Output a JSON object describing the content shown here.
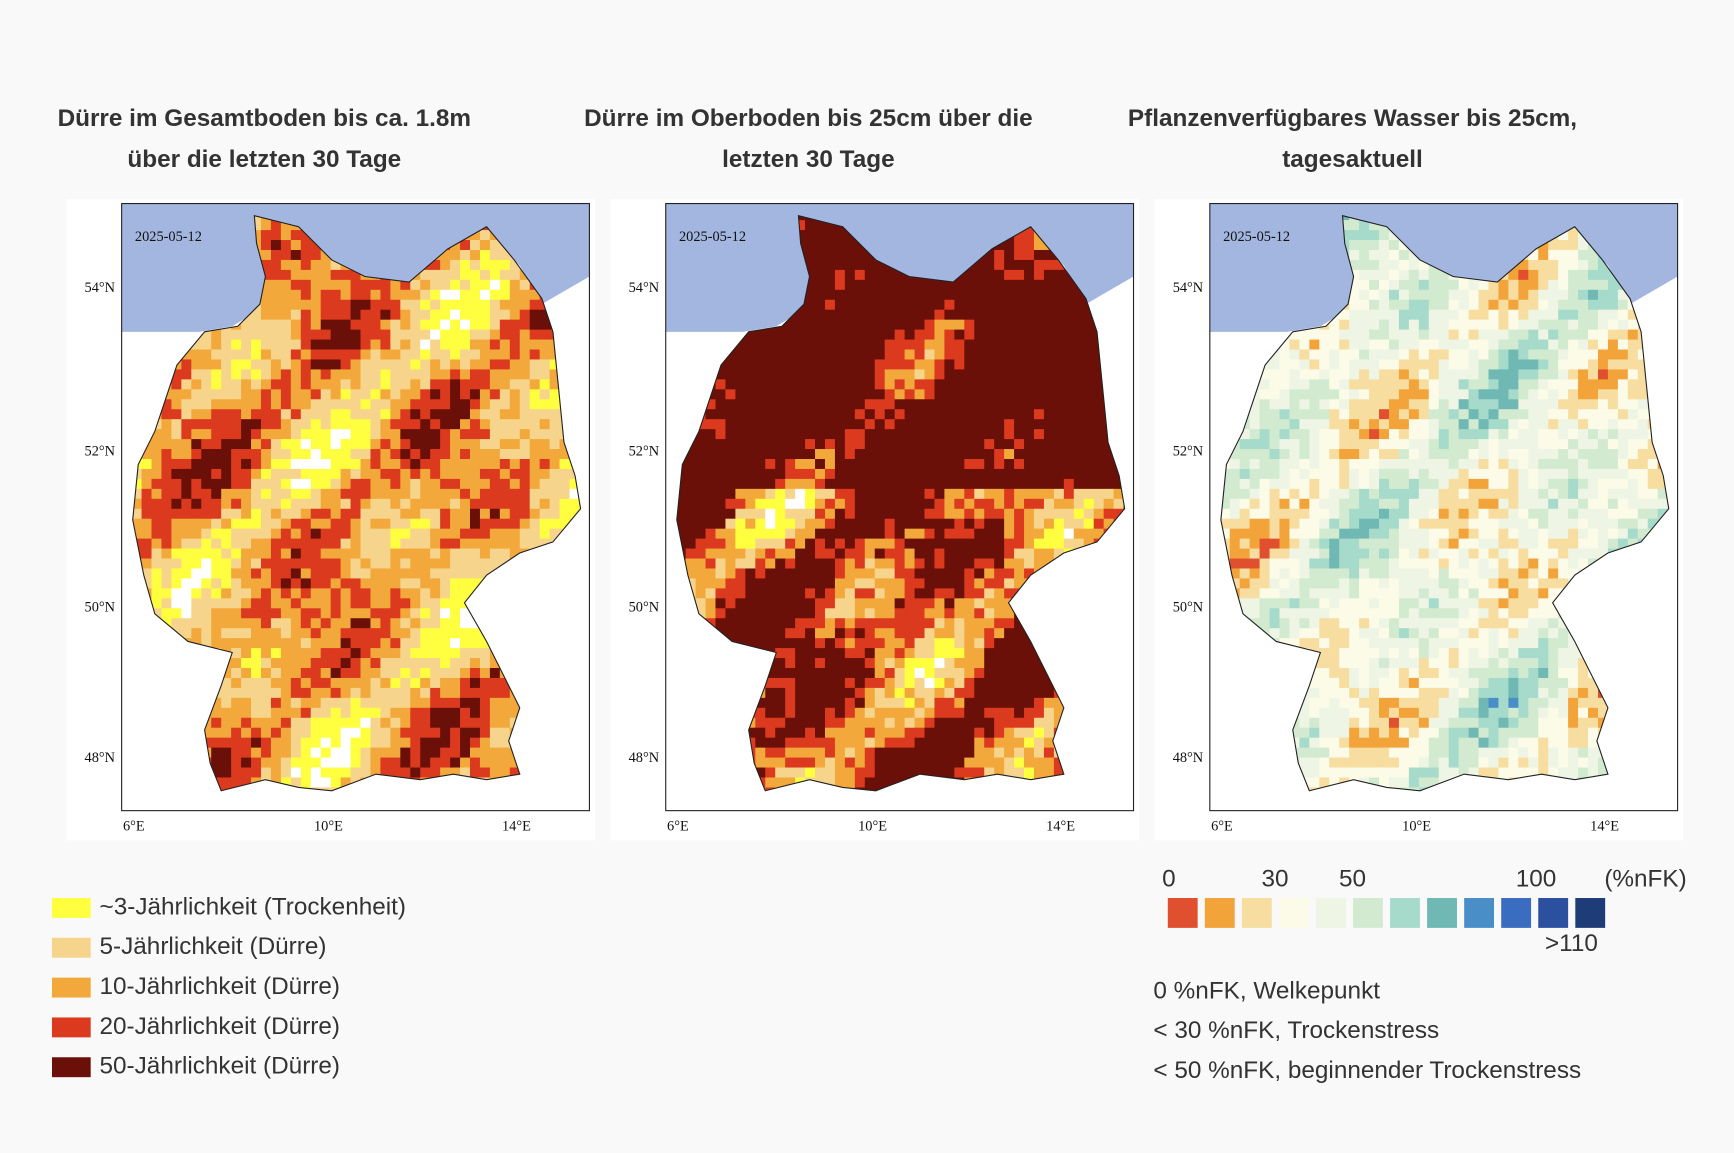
{
  "maps": [
    {
      "title": [
        "Dürre im Gesamtboden bis ca. 1.8m",
        "über die letzten 30 Tage"
      ],
      "date": "2025-05-12",
      "lat_labels": [
        "54°N",
        "52°N",
        "50°N",
        "48°N"
      ],
      "lon_labels": [
        "6°E",
        "10°E",
        "14°E"
      ]
    },
    {
      "title": [
        "Dürre im Oberboden bis 25cm über die",
        "letzten 30 Tage"
      ],
      "date": "2025-05-12",
      "lat_labels": [
        "54°N",
        "52°N",
        "50°N",
        "48°N"
      ],
      "lon_labels": [
        "6°E",
        "10°E",
        "14°E"
      ]
    },
    {
      "title": [
        "Pflanzenverfügbares Wasser bis 25cm,",
        "tagesaktuell"
      ],
      "date": "2025-05-12",
      "lat_labels": [
        "54°N",
        "52°N",
        "50°N",
        "48°N"
      ],
      "lon_labels": [
        "6°E",
        "10°E",
        "14°E"
      ]
    }
  ],
  "drought_legend": [
    {
      "label": "~3-Jährlichkeit (Trockenheit)",
      "color": "#ffff40"
    },
    {
      "label": "5-Jährlichkeit (Dürre)",
      "color": "#f7d48c"
    },
    {
      "label": "10-Jährlichkeit (Dürre)",
      "color": "#f2a83a"
    },
    {
      "label": "20-Jährlichkeit (Dürre)",
      "color": "#dc3a1e"
    },
    {
      "label": "50-Jährlichkeit (Dürre)",
      "color": "#6b1008"
    }
  ],
  "water_legend": {
    "tick_labels": [
      "0",
      "30",
      "50",
      "100",
      "(%nFK)"
    ],
    "overflow_label": ">110",
    "colors": [
      "#e0502f",
      "#f2a33a",
      "#f7dda0",
      "#fbfbe8",
      "#eef5e4",
      "#d2ebd0",
      "#a6dacb",
      "#6fb8b3",
      "#4a8ec8",
      "#3a6cc0",
      "#2c50a0",
      "#1e3d78"
    ],
    "notes": [
      "0 %nFK, Welkepunkt",
      "< 30 %nFK, Trockenstress",
      "< 50 %nFK, beginnender Trockenstress"
    ]
  }
}
